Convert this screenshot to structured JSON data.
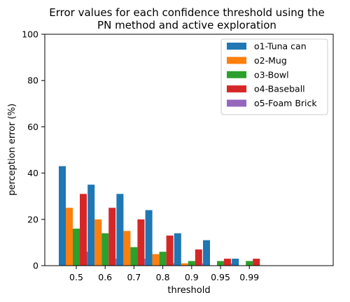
{
  "chart_data": {
    "type": "bar",
    "title_lines": [
      "Error values for each confidence threshold using the",
      "PN method and active exploration"
    ],
    "xlabel": "threshold",
    "ylabel": "perception error (%)",
    "categories": [
      "0.5",
      "0.6",
      "0.7",
      "0.8",
      "0.9",
      "0.95",
      "0.99"
    ],
    "ylim": [
      0,
      100
    ],
    "yticks": [
      "0",
      "20",
      "40",
      "60",
      "80",
      "100"
    ],
    "grid": false,
    "legend_position": "top-right",
    "series": [
      {
        "name": "o1-Tuna can",
        "color": "#1f77b4",
        "values": [
          43,
          35,
          31,
          24,
          14,
          11,
          3
        ]
      },
      {
        "name": "o2-Mug",
        "color": "#ff7f0e",
        "values": [
          25,
          20,
          15,
          5,
          1,
          0,
          0
        ]
      },
      {
        "name": "o3-Bowl",
        "color": "#2ca02c",
        "values": [
          16,
          14,
          8,
          6,
          2,
          2,
          2
        ]
      },
      {
        "name": "o4-Baseball",
        "color": "#d62728",
        "values": [
          31,
          25,
          20,
          13,
          7,
          3,
          3
        ]
      },
      {
        "name": "o5-Foam Brick",
        "color": "#9467bd",
        "values": [
          6,
          3,
          3,
          1,
          1,
          1,
          0
        ]
      }
    ]
  }
}
